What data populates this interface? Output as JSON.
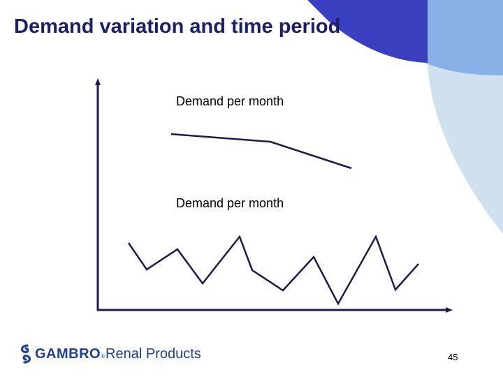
{
  "slide": {
    "title": "Demand variation and time period",
    "label_top": "Demand per month",
    "label_bottom": "Demand per month",
    "page_number": "45"
  },
  "logo": {
    "brand": "GAMBRO",
    "registered_mark": "®",
    "tagline": "Renal Products"
  },
  "colors": {
    "title": "#1a1f66",
    "line": "#1b1b4d",
    "arc_dark": "#3a3fbf",
    "arc_mid": "#8ab0e8",
    "arc_light": "#cfe0ee",
    "logo": "#1f3f8f"
  }
}
